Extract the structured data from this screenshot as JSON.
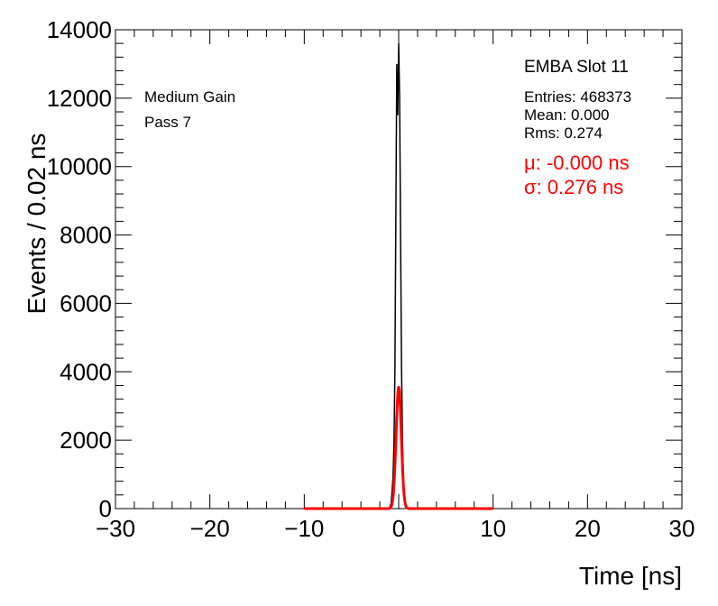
{
  "chart_data": {
    "type": "line",
    "title": "EMBA Slot 11",
    "xlabel": "Time [ns]",
    "ylabel": "Events / 0.02 ns",
    "xlim": [
      -30,
      30
    ],
    "ylim": [
      0,
      14000
    ],
    "x_ticks": [
      -30,
      -20,
      -10,
      0,
      10,
      20,
      30
    ],
    "x_tick_labels": [
      "−30",
      "−20",
      "−10",
      "0",
      "10",
      "20",
      "30"
    ],
    "y_ticks": [
      0,
      2000,
      4000,
      6000,
      8000,
      10000,
      12000,
      14000
    ],
    "y_tick_labels": [
      "0",
      "2000",
      "4000",
      "6000",
      "8000",
      "10000",
      "12000",
      "14000"
    ],
    "labels": [
      "Medium Gain",
      "Pass 7"
    ],
    "stats": {
      "title": "EMBA Slot 11",
      "entries": "Entries: 468373",
      "mean": "Mean: 0.000",
      "rms": "Rms: 0.274"
    },
    "fit": {
      "mu_label": "μ: -0.000 ns",
      "sigma_label": "σ: 0.276 ns",
      "color": "#ff0000",
      "range": [
        -10,
        10
      ],
      "mu": 0.0,
      "sigma": 0.276,
      "amplitude": 3550
    },
    "series": [
      {
        "color": "#000000",
        "x": [
          -1.0,
          -0.8,
          -0.6,
          -0.5,
          -0.4,
          -0.3,
          -0.2,
          -0.1,
          0.0,
          0.1,
          0.2,
          0.3,
          0.4,
          0.5,
          0.6,
          0.8,
          1.0
        ],
        "y": [
          0,
          150,
          900,
          1900,
          4000,
          8500,
          13000,
          11500,
          13600,
          12000,
          8000,
          4200,
          2000,
          900,
          300,
          50,
          0
        ]
      }
    ],
    "grid": false
  }
}
